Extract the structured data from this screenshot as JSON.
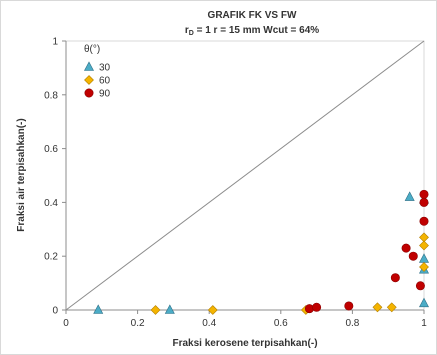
{
  "chart_data": {
    "type": "scatter",
    "title": "GRAFIK FK VS FW",
    "subtitle": "rD = 1   r = 15 mm   Wcut = 64%",
    "xlabel": "Fraksi kerosene terpisahkan(-)",
    "ylabel": "Fraksi air terpisahkan(-)",
    "xlim": [
      0,
      1
    ],
    "ylim": [
      0,
      1
    ],
    "x_ticks": [
      "0",
      "0.2",
      "0.4",
      "0.6",
      "0.8",
      "1"
    ],
    "y_ticks": [
      "0",
      "0.2",
      "0.4",
      "0.6",
      "0.8",
      "1"
    ],
    "grid": false,
    "legend_title": "θ(°)",
    "legend_position": "top-left",
    "reference_line": {
      "from": [
        0,
        0
      ],
      "to": [
        1,
        1
      ]
    },
    "series": [
      {
        "name": "30",
        "color": "#4BACC6",
        "marker": "triangle",
        "points": [
          [
            0.09,
            0.0
          ],
          [
            0.29,
            0.0
          ],
          [
            0.96,
            0.42
          ],
          [
            1.0,
            0.41
          ],
          [
            1.0,
            0.19
          ],
          [
            1.0,
            0.15
          ],
          [
            1.0,
            0.025
          ]
        ]
      },
      {
        "name": "60",
        "color": "#F4B400",
        "marker": "diamond",
        "points": [
          [
            0.25,
            0.0
          ],
          [
            0.41,
            0.0
          ],
          [
            0.67,
            0.0
          ],
          [
            0.87,
            0.01
          ],
          [
            0.91,
            0.01
          ],
          [
            1.0,
            0.27
          ],
          [
            1.0,
            0.24
          ],
          [
            1.0,
            0.16
          ]
        ]
      },
      {
        "name": "90",
        "color": "#C00000",
        "marker": "circle",
        "points": [
          [
            0.68,
            0.005
          ],
          [
            0.7,
            0.01
          ],
          [
            0.79,
            0.015
          ],
          [
            0.92,
            0.12
          ],
          [
            0.95,
            0.23
          ],
          [
            0.97,
            0.2
          ],
          [
            0.99,
            0.09
          ],
          [
            1.0,
            0.43
          ],
          [
            1.0,
            0.4
          ],
          [
            1.0,
            0.33
          ]
        ]
      }
    ]
  }
}
